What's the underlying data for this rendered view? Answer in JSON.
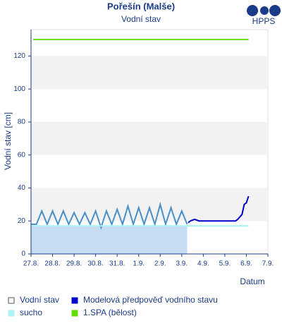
{
  "chart_data": {
    "type": "line",
    "title": "Pořešín (Malše)",
    "subtitle": "Vodní stav",
    "logo": "HPPS",
    "y_label": "Vodní stav [cm]",
    "x_label": "Datum",
    "xlim": [
      0,
      11
    ],
    "xticks": [
      {
        "value": 0,
        "label": "27.8."
      },
      {
        "value": 1,
        "label": "28.8."
      },
      {
        "value": 2,
        "label": "29.8."
      },
      {
        "value": 3,
        "label": "30.8."
      },
      {
        "value": 4,
        "label": "31.8."
      },
      {
        "value": 5,
        "label": "1.9."
      },
      {
        "value": 6,
        "label": "2.9."
      },
      {
        "value": 7,
        "label": "3.9."
      },
      {
        "value": 8,
        "label": "4.9."
      },
      {
        "value": 9,
        "label": "5.9."
      },
      {
        "value": 10,
        "label": "6.9."
      },
      {
        "value": 11,
        "label": "7.9."
      }
    ],
    "ylim": [
      0,
      136
    ],
    "yticks": [
      0,
      20,
      40,
      60,
      80,
      100,
      120
    ],
    "grid": true,
    "series": [
      {
        "name": "Vodní stav",
        "color": "#4a8fc8",
        "x": [
          0,
          0.25,
          0.5,
          0.75,
          1,
          1.25,
          1.5,
          1.75,
          2,
          2.25,
          2.5,
          2.75,
          3,
          3.25,
          3.5,
          3.75,
          4,
          4.25,
          4.5,
          4.75,
          5,
          5.25,
          5.5,
          5.75,
          6,
          6.25,
          6.5,
          6.75,
          7,
          7.25
        ],
        "values": [
          18,
          18,
          26,
          18,
          26,
          18,
          26,
          18,
          25,
          18,
          25,
          18,
          26,
          16,
          26,
          18,
          27,
          18,
          29,
          18,
          28,
          18,
          28,
          18,
          30,
          18,
          28,
          18,
          26,
          18
        ]
      },
      {
        "name": "Modelová předpověď vodního stavu",
        "color": "#0000cc",
        "x": [
          7.3,
          7.4,
          7.6,
          7.8,
          9.5,
          9.6,
          9.8,
          9.9,
          10,
          10.1
        ],
        "values": [
          19,
          20,
          21,
          20,
          20,
          21,
          24,
          30,
          31,
          35
        ]
      },
      {
        "name": "sucho",
        "color": "#a8f4f4",
        "x": [
          0,
          10.1
        ],
        "values": [
          17,
          17
        ]
      },
      {
        "name": "1.SPA (bělost)",
        "color": "#66dd00",
        "x": [
          0.1,
          10.1
        ],
        "values": [
          130,
          130
        ]
      }
    ]
  }
}
